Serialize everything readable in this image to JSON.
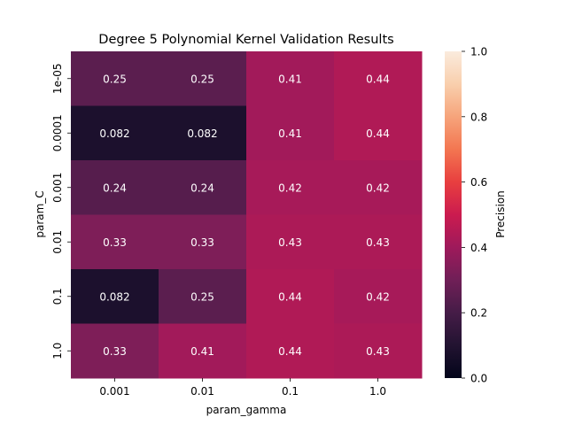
{
  "chart_data": {
    "type": "heatmap",
    "title": "Degree 5 Polynomial Kernel Validation Results",
    "xlabel": "param_gamma",
    "ylabel": "param_C",
    "x_categories": [
      "0.001",
      "0.01",
      "0.1",
      "1.0"
    ],
    "y_categories": [
      "1e-05",
      "0.0001",
      "0.001",
      "0.01",
      "0.1",
      "1.0"
    ],
    "values": [
      [
        0.25,
        0.25,
        0.41,
        0.44
      ],
      [
        0.082,
        0.082,
        0.41,
        0.44
      ],
      [
        0.24,
        0.24,
        0.42,
        0.42
      ],
      [
        0.33,
        0.33,
        0.43,
        0.43
      ],
      [
        0.082,
        0.25,
        0.44,
        0.42
      ],
      [
        0.33,
        0.41,
        0.44,
        0.43
      ]
    ],
    "cell_labels": [
      [
        "0.25",
        "0.25",
        "0.41",
        "0.44"
      ],
      [
        "0.082",
        "0.082",
        "0.41",
        "0.44"
      ],
      [
        "0.24",
        "0.24",
        "0.42",
        "0.42"
      ],
      [
        "0.33",
        "0.33",
        "0.43",
        "0.43"
      ],
      [
        "0.082",
        "0.25",
        "0.44",
        "0.42"
      ],
      [
        "0.33",
        "0.41",
        "0.44",
        "0.43"
      ]
    ],
    "colorbar": {
      "label": "Precision",
      "vmin": 0.0,
      "vmax": 1.0,
      "ticks": [
        "0.0",
        "0.2",
        "0.4",
        "0.6",
        "0.8",
        "1.0"
      ],
      "colormap": "rocket"
    },
    "grid": false
  }
}
